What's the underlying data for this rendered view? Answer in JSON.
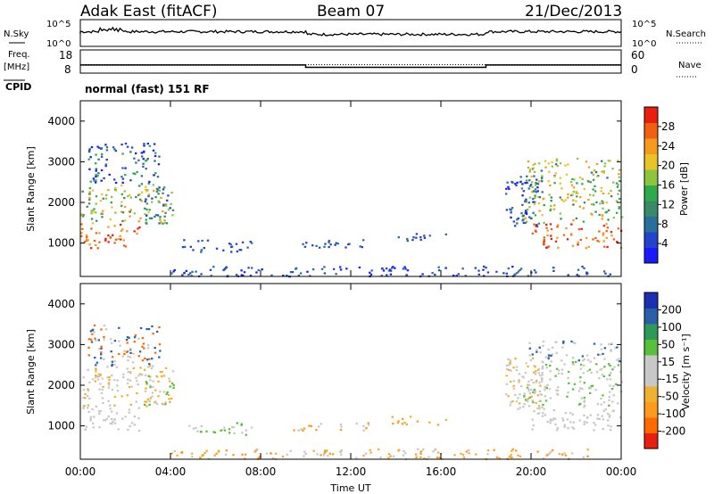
{
  "header": {
    "site": "Adak East (fitACF)",
    "beam": "Beam 07",
    "date": "21/Dec/2013"
  },
  "labels": {
    "nsky": "N.Sky",
    "nsearch": "N.Search",
    "freq_line1": "Freq.",
    "freq_line2": "[MHz]",
    "nave": "Nave",
    "cpid": "CPID",
    "mode": "normal (fast) 151 RF"
  },
  "colors": {
    "power_scale": [
      "#1a1aff",
      "#2244cc",
      "#2a6e9a",
      "#3a8a6a",
      "#2faa4a",
      "#8cc63f",
      "#e8c42a",
      "#f59a1c",
      "#f06010",
      "#e81e0e"
    ],
    "velocity_scale": [
      "#e81e0e",
      "#ff6a00",
      "#ff9a1e",
      "#f0b030",
      "#c8c8c8",
      "#c8c8c8",
      "#5abf3a",
      "#2e9a5a",
      "#2a5fa8",
      "#1c2fb0"
    ],
    "gray_scatter": "#c0c0c0"
  },
  "chart_data": [
    {
      "type": "line",
      "name": "noise-panel",
      "series": [
        {
          "name": "N.Sky"
        },
        {
          "name": "N.Search"
        }
      ],
      "y_ticks_left": [
        "10^5",
        "10^0"
      ],
      "y_ticks_right": [
        "10^5",
        "10^0"
      ],
      "yscale": "log"
    },
    {
      "type": "line",
      "name": "frequency-panel",
      "y_ticks_left": [
        "18",
        "8"
      ],
      "y_ticks_right": [
        "60",
        "0"
      ],
      "series": [
        {
          "name": "Freq.",
          "x": [
            "00:00",
            "10:00",
            "10:00",
            "18:00",
            "18:00",
            "24:00"
          ],
          "values": [
            11.5,
            11.5,
            10.5,
            10.5,
            11.5,
            11.5
          ]
        },
        {
          "name": "Nave",
          "x": [
            "00:00",
            "24:00"
          ],
          "values": [
            22,
            22
          ]
        }
      ]
    },
    {
      "type": "heatmap",
      "name": "power-panel",
      "ylabel": "Slant Range [km]",
      "ylim": [
        180,
        4500
      ],
      "y_ticks": [
        "1000",
        "2000",
        "3000",
        "4000"
      ],
      "colorbar_label": "Power [dB]",
      "colorbar_ticks": [
        "4",
        "8",
        "12",
        "16",
        "20",
        "24",
        "28"
      ]
    },
    {
      "type": "heatmap",
      "name": "velocity-panel",
      "ylabel": "Slant Range [km]",
      "xlabel": "Time UT",
      "ylim": [
        180,
        4500
      ],
      "y_ticks": [
        "1000",
        "2000",
        "3000",
        "4000"
      ],
      "x_ticks": [
        "00:00",
        "04:00",
        "08:00",
        "12:00",
        "16:00",
        "20:00",
        "00:00"
      ],
      "colorbar_label": "Velocity [m s⁻¹]",
      "colorbar_ticks": [
        "200",
        "100",
        "50",
        "15",
        "-15",
        "-50",
        "-100",
        "-200"
      ]
    }
  ]
}
